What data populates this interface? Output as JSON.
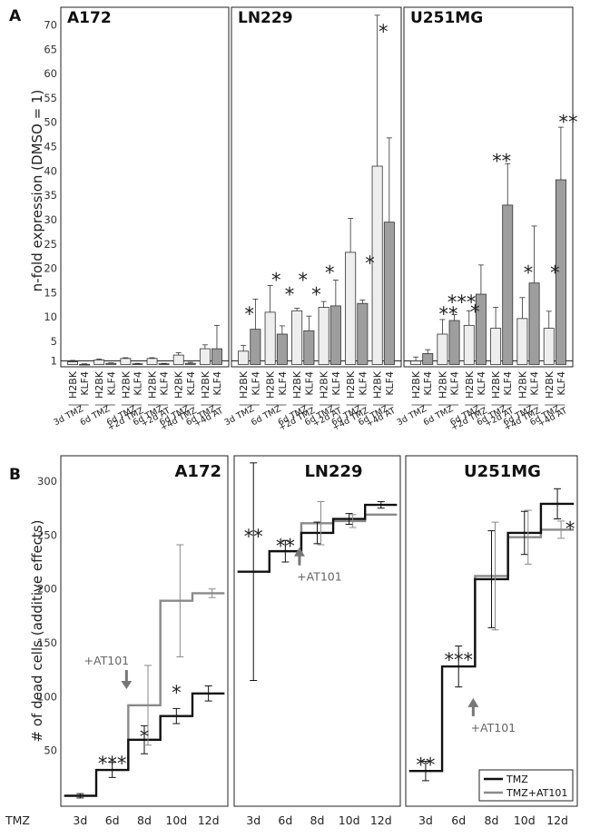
{
  "chart_data": [
    {
      "label": "A",
      "type": "bar",
      "ylabel": "n-fold expression (DMSO = 1)",
      "ylim": [
        0,
        70
      ],
      "yticks": [
        1,
        5,
        10,
        15,
        20,
        25,
        30,
        35,
        40,
        45,
        50,
        55,
        60,
        65,
        70
      ],
      "series": [
        "H2BK",
        "KLF4"
      ],
      "conditions": [
        [
          "3d TMZ"
        ],
        [
          "6d TMZ"
        ],
        [
          "6d TMZ",
          "+2d TMZ"
        ],
        [
          "6d TMZ",
          "+2d AT"
        ],
        [
          "6d TMZ",
          "+4d TMZ"
        ],
        [
          "6d TMZ",
          "+4d AT"
        ]
      ],
      "panels": [
        {
          "title": "A172",
          "h2bk": [
            {
              "v": 0.8,
              "e": 0.3
            },
            {
              "v": 1.2,
              "e": 0.2
            },
            {
              "v": 1.5,
              "e": 0.15
            },
            {
              "v": 1.5,
              "e": 0.15
            },
            {
              "v": 2.2,
              "e": 0.5
            },
            {
              "v": 3.5,
              "e": 0.8
            }
          ],
          "klf4": [
            {
              "v": 0.3,
              "e": 0.1
            },
            {
              "v": 0.5,
              "e": 0.1
            },
            {
              "v": 0.4,
              "e": 0.1
            },
            {
              "v": 0.4,
              "e": 0.1
            },
            {
              "v": 0.5,
              "e": 0.2
            },
            {
              "v": 3.5,
              "e": 4.8
            }
          ],
          "stars": []
        },
        {
          "title": "LN229",
          "h2bk": [
            {
              "v": 3.0,
              "e": 1.2
            },
            {
              "v": 11.0,
              "e": 5.5
            },
            {
              "v": 11.3,
              "e": 0.5
            },
            {
              "v": 12.0,
              "e": 1.2
            },
            {
              "v": 23.3,
              "e": 7.0
            },
            {
              "v": 41.0,
              "e": 31.0
            }
          ],
          "klf4": [
            {
              "v": 7.5,
              "e": 6.2
            },
            {
              "v": 6.5,
              "e": 1.7
            },
            {
              "v": 7.2,
              "e": 3.0
            },
            {
              "v": 12.3,
              "e": 5.3
            },
            {
              "v": 12.8,
              "e": 0.7
            },
            {
              "v": 29.5,
              "e": 17.3
            }
          ],
          "stars": [
            {
              "text": "*",
              "value": 11.5,
              "pos": 0
            },
            {
              "text": "*",
              "value": 18.5,
              "pos": 1
            },
            {
              "text": "*",
              "value": 15.5,
              "pos": 1.5
            },
            {
              "text": "*",
              "value": 18.5,
              "pos": 2
            },
            {
              "text": "*",
              "value": 15.5,
              "pos": 2.5
            },
            {
              "text": "*",
              "value": 20.0,
              "pos": 3
            },
            {
              "text": "*",
              "value": 22.0,
              "pos": 4.5
            },
            {
              "text": "*",
              "value": 69.5,
              "pos": 5
            }
          ]
        },
        {
          "title": "U251MG",
          "h2bk": [
            {
              "v": 1.0,
              "e": 0.8
            },
            {
              "v": 6.5,
              "e": 3.0
            },
            {
              "v": 8.3,
              "e": 3.0
            },
            {
              "v": 7.7,
              "e": 4.3
            },
            {
              "v": 9.7,
              "e": 4.3
            },
            {
              "v": 7.7,
              "e": 3.5
            }
          ],
          "klf4": [
            {
              "v": 2.5,
              "e": 0.8
            },
            {
              "v": 9.3,
              "e": 1.2
            },
            {
              "v": 14.7,
              "e": 6.0
            },
            {
              "v": 33.0,
              "e": 8.5
            },
            {
              "v": 17.0,
              "e": 11.7
            },
            {
              "v": 38.2,
              "e": 10.8
            }
          ],
          "stars": [
            {
              "text": "**",
              "value": 11.5,
              "pos": 1
            },
            {
              "text": "***",
              "value": 14.0,
              "pos": 1.5
            },
            {
              "text": "*",
              "value": 12.0,
              "pos": 2
            },
            {
              "text": "**",
              "value": 43.0,
              "pos": 3
            },
            {
              "text": "*",
              "value": 20.0,
              "pos": 4
            },
            {
              "text": "*",
              "value": 20.0,
              "pos": 5
            },
            {
              "text": "**",
              "value": 51.0,
              "pos": 5.5
            }
          ]
        }
      ]
    },
    {
      "label": "B",
      "type": "line",
      "ylabel": "# of dead cells (additive effects)",
      "ylim": [
        0,
        315
      ],
      "yticks": [
        50,
        100,
        150,
        200,
        250,
        300
      ],
      "x_label": "TMZ",
      "x_ticks": [
        "3d",
        "6d",
        "8d",
        "10d",
        "12d"
      ],
      "legend": [
        "TMZ",
        "TMZ+AT101"
      ],
      "arrow_label": "+AT101",
      "panels": [
        {
          "title": "A172",
          "tmz": [
            {
              "v": 8,
              "e": 2
            },
            {
              "v": 32,
              "e": 7
            },
            {
              "v": 60,
              "e": 13
            },
            {
              "v": 82,
              "e": 7
            },
            {
              "v": 103,
              "e": 7
            }
          ],
          "at101": [
            {
              "v": 92,
              "e": 37
            },
            {
              "v": 189,
              "e": 52
            },
            {
              "v": 196,
              "e": 4
            }
          ],
          "stars_tmz": [
            {
              "text": "***",
              "value": 42,
              "pos": 1
            }
          ],
          "stars_at": [
            {
              "text": "*",
              "value": 67,
              "pos": 2
            },
            {
              "text": "*",
              "value": 108,
              "pos": 3
            }
          ],
          "arrow_value": 118
        },
        {
          "title": "LN229",
          "tmz": [
            {
              "v": 216,
              "e": 101
            },
            {
              "v": 235,
              "e": 10
            },
            {
              "v": 252,
              "e": 10
            },
            {
              "v": 265,
              "e": 5
            },
            {
              "v": 278,
              "e": 3
            }
          ],
          "at101": [
            {
              "v": 261,
              "e": 20
            },
            {
              "v": 263,
              "e": 6
            },
            {
              "v": 269,
              "e": 0
            }
          ],
          "stars_tmz": [
            {
              "text": "**",
              "value": 253,
              "pos": 0
            },
            {
              "text": "**",
              "value": 244,
              "pos": 1
            }
          ],
          "stars_at": [],
          "arrow_value": 232
        },
        {
          "title": "U251MG",
          "tmz": [
            {
              "v": 31,
              "e": 9
            },
            {
              "v": 128,
              "e": 19
            },
            {
              "v": 209,
              "e": 45
            },
            {
              "v": 252,
              "e": 20
            },
            {
              "v": 279,
              "e": 14
            }
          ],
          "at101": [
            {
              "v": 212,
              "e": 50
            },
            {
              "v": 248,
              "e": 25
            },
            {
              "v": 255,
              "e": 8
            }
          ],
          "stars_tmz": [
            {
              "text": "**",
              "value": 41,
              "pos": 0
            },
            {
              "text": "***",
              "value": 138,
              "pos": 1
            }
          ],
          "stars_at": [
            {
              "text": "*",
              "value": 260,
              "pos": 4
            }
          ],
          "arrow_value": 92
        }
      ]
    }
  ]
}
